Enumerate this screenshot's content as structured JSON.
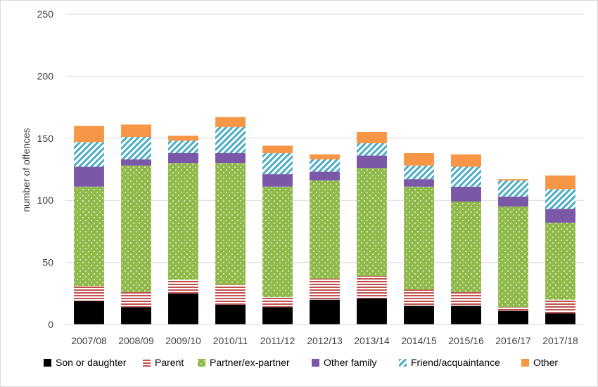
{
  "chart_data": {
    "type": "bar",
    "stacked": true,
    "ylabel": "number of offences",
    "xlabel": "",
    "ylim": [
      0,
      250
    ],
    "yticks": [
      0,
      50,
      100,
      150,
      200,
      250
    ],
    "grid": true,
    "legend_position": "bottom",
    "categories": [
      "2007/08",
      "2008/09",
      "2009/10",
      "2010/11",
      "2011/12",
      "2012/13",
      "2013/14",
      "2014/15",
      "2015/16",
      "2016/17",
      "2017/18"
    ],
    "series": [
      {
        "name": "Son or daughter",
        "pattern": "solid",
        "color": "#000000",
        "values": [
          19,
          14,
          25,
          16,
          14,
          20,
          21,
          15,
          15,
          11,
          9
        ]
      },
      {
        "name": "Parent",
        "pattern": "horizontal-stripes",
        "color": "#c0504d",
        "values": [
          12,
          12,
          11,
          16,
          8,
          17,
          18,
          13,
          11,
          3,
          11
        ]
      },
      {
        "name": "Partner/ex-partner",
        "pattern": "dots",
        "color": "#8fba4a",
        "values": [
          80,
          102,
          94,
          98,
          89,
          79,
          87,
          83,
          73,
          81,
          62
        ]
      },
      {
        "name": "Other family",
        "pattern": "solid",
        "color": "#7b57a8",
        "values": [
          16,
          5,
          8,
          8,
          10,
          7,
          10,
          6,
          12,
          8,
          11
        ]
      },
      {
        "name": "Friend/acquaintance",
        "pattern": "diagonal-stripes",
        "color": "#4bacc6",
        "values": [
          20,
          18,
          10,
          21,
          17,
          10,
          10,
          11,
          16,
          13,
          16
        ]
      },
      {
        "name": "Other",
        "pattern": "solid",
        "color": "#f79646",
        "values": [
          13,
          10,
          4,
          8,
          6,
          4,
          9,
          10,
          10,
          1,
          11
        ]
      }
    ]
  }
}
